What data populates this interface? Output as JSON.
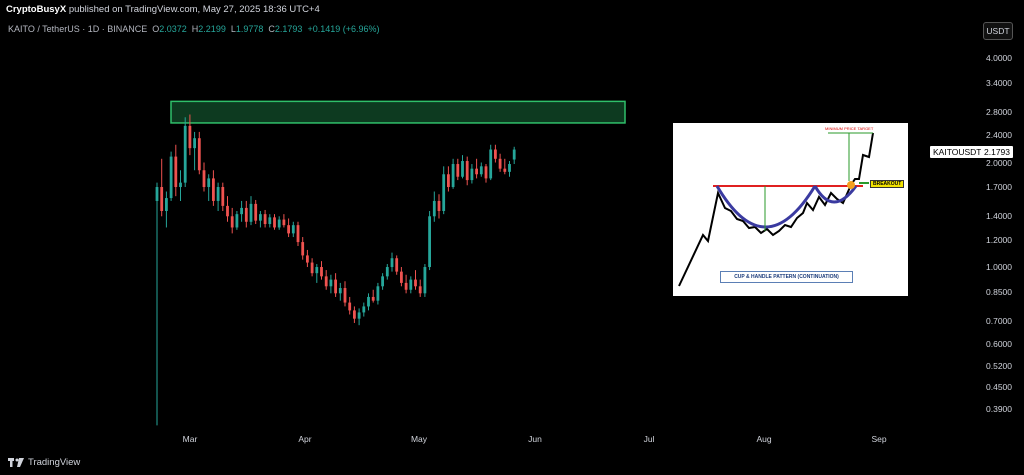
{
  "publisher": {
    "name": "CryptoBusyX",
    "text": "published on TradingView.com, May 27, 2025 18:36 UTC+4"
  },
  "header": {
    "symbol": "KAITO / TetherUS · 1D · BINANCE",
    "o_label": "O",
    "o_value": "2.0372",
    "h_label": "H",
    "h_value": "2.2199",
    "l_label": "L",
    "l_value": "1.9778",
    "c_label": "C",
    "c_value": "2.1793",
    "change": "+0.1419 (+6.96%)"
  },
  "currency_button": "USDT",
  "price_badge": {
    "symbol": "KAITOUSDT",
    "value": "2.1793"
  },
  "footer": {
    "brand": "TradingView"
  },
  "colors": {
    "up": "#26a69a",
    "down": "#ef5350",
    "zone": "#26a65b"
  },
  "chart_data": {
    "type": "candlestick",
    "scale": "log",
    "x_ticks": [
      "Mar",
      "Apr",
      "May",
      "Jun",
      "Jul",
      "Aug",
      "Sep"
    ],
    "y_ticks": [
      "4.0000",
      "3.4000",
      "2.8000",
      "2.4000",
      "2.0000",
      "1.7000",
      "1.4000",
      "1.2000",
      "1.0000",
      "0.8500",
      "0.7000",
      "0.6000",
      "0.5200",
      "0.4500",
      "0.3900"
    ],
    "resistance_zone": [
      2.6,
      3.0
    ],
    "last_price": 2.1793,
    "candles": [
      {
        "o": 1.55,
        "h": 1.75,
        "l": 0.35,
        "c": 1.7
      },
      {
        "o": 1.7,
        "h": 2.05,
        "l": 1.4,
        "c": 1.45
      },
      {
        "o": 1.45,
        "h": 1.65,
        "l": 1.3,
        "c": 1.58
      },
      {
        "o": 1.58,
        "h": 2.15,
        "l": 1.55,
        "c": 2.08
      },
      {
        "o": 2.08,
        "h": 2.25,
        "l": 1.6,
        "c": 1.7
      },
      {
        "o": 1.7,
        "h": 1.9,
        "l": 1.55,
        "c": 1.75
      },
      {
        "o": 1.75,
        "h": 2.7,
        "l": 1.7,
        "c": 2.55
      },
      {
        "o": 2.55,
        "h": 2.75,
        "l": 2.1,
        "c": 2.2
      },
      {
        "o": 2.2,
        "h": 2.45,
        "l": 1.9,
        "c": 2.35
      },
      {
        "o": 2.35,
        "h": 2.45,
        "l": 1.85,
        "c": 1.9
      },
      {
        "o": 1.9,
        "h": 2.0,
        "l": 1.65,
        "c": 1.7
      },
      {
        "o": 1.7,
        "h": 1.85,
        "l": 1.55,
        "c": 1.8
      },
      {
        "o": 1.8,
        "h": 1.9,
        "l": 1.5,
        "c": 1.55
      },
      {
        "o": 1.55,
        "h": 1.75,
        "l": 1.45,
        "c": 1.7
      },
      {
        "o": 1.7,
        "h": 1.75,
        "l": 1.45,
        "c": 1.5
      },
      {
        "o": 1.5,
        "h": 1.6,
        "l": 1.35,
        "c": 1.4
      },
      {
        "o": 1.4,
        "h": 1.48,
        "l": 1.25,
        "c": 1.3
      },
      {
        "o": 1.3,
        "h": 1.45,
        "l": 1.28,
        "c": 1.42
      },
      {
        "o": 1.42,
        "h": 1.55,
        "l": 1.35,
        "c": 1.48
      },
      {
        "o": 1.48,
        "h": 1.55,
        "l": 1.3,
        "c": 1.35
      },
      {
        "o": 1.35,
        "h": 1.6,
        "l": 1.32,
        "c": 1.52
      },
      {
        "o": 1.52,
        "h": 1.56,
        "l": 1.33,
        "c": 1.36
      },
      {
        "o": 1.36,
        "h": 1.45,
        "l": 1.3,
        "c": 1.42
      },
      {
        "o": 1.42,
        "h": 1.46,
        "l": 1.3,
        "c": 1.33
      },
      {
        "o": 1.33,
        "h": 1.42,
        "l": 1.3,
        "c": 1.39
      },
      {
        "o": 1.39,
        "h": 1.42,
        "l": 1.28,
        "c": 1.3
      },
      {
        "o": 1.3,
        "h": 1.4,
        "l": 1.28,
        "c": 1.37
      },
      {
        "o": 1.37,
        "h": 1.42,
        "l": 1.3,
        "c": 1.32
      },
      {
        "o": 1.32,
        "h": 1.38,
        "l": 1.22,
        "c": 1.25
      },
      {
        "o": 1.25,
        "h": 1.35,
        "l": 1.22,
        "c": 1.32
      },
      {
        "o": 1.32,
        "h": 1.35,
        "l": 1.15,
        "c": 1.18
      },
      {
        "o": 1.18,
        "h": 1.22,
        "l": 1.05,
        "c": 1.08
      },
      {
        "o": 1.08,
        "h": 1.12,
        "l": 1.0,
        "c": 1.03
      },
      {
        "o": 1.03,
        "h": 1.06,
        "l": 0.94,
        "c": 0.96
      },
      {
        "o": 0.96,
        "h": 1.02,
        "l": 0.9,
        "c": 1.0
      },
      {
        "o": 1.0,
        "h": 1.04,
        "l": 0.92,
        "c": 0.94
      },
      {
        "o": 0.94,
        "h": 0.98,
        "l": 0.86,
        "c": 0.88
      },
      {
        "o": 0.88,
        "h": 0.95,
        "l": 0.84,
        "c": 0.92
      },
      {
        "o": 0.92,
        "h": 0.96,
        "l": 0.82,
        "c": 0.84
      },
      {
        "o": 0.84,
        "h": 0.9,
        "l": 0.8,
        "c": 0.87
      },
      {
        "o": 0.87,
        "h": 0.91,
        "l": 0.77,
        "c": 0.79
      },
      {
        "o": 0.79,
        "h": 0.82,
        "l": 0.73,
        "c": 0.75
      },
      {
        "o": 0.75,
        "h": 0.77,
        "l": 0.69,
        "c": 0.71
      },
      {
        "o": 0.71,
        "h": 0.76,
        "l": 0.68,
        "c": 0.74
      },
      {
        "o": 0.74,
        "h": 0.79,
        "l": 0.72,
        "c": 0.77
      },
      {
        "o": 0.77,
        "h": 0.84,
        "l": 0.75,
        "c": 0.82
      },
      {
        "o": 0.82,
        "h": 0.86,
        "l": 0.79,
        "c": 0.8
      },
      {
        "o": 0.8,
        "h": 0.9,
        "l": 0.78,
        "c": 0.88
      },
      {
        "o": 0.88,
        "h": 0.96,
        "l": 0.86,
        "c": 0.94
      },
      {
        "o": 0.94,
        "h": 1.02,
        "l": 0.92,
        "c": 1.0
      },
      {
        "o": 1.0,
        "h": 1.1,
        "l": 0.97,
        "c": 1.06
      },
      {
        "o": 1.06,
        "h": 1.08,
        "l": 0.95,
        "c": 0.97
      },
      {
        "o": 0.97,
        "h": 1.0,
        "l": 0.88,
        "c": 0.9
      },
      {
        "o": 0.9,
        "h": 0.95,
        "l": 0.84,
        "c": 0.86
      },
      {
        "o": 0.86,
        "h": 0.94,
        "l": 0.84,
        "c": 0.92
      },
      {
        "o": 0.92,
        "h": 0.98,
        "l": 0.86,
        "c": 0.88
      },
      {
        "o": 0.88,
        "h": 0.92,
        "l": 0.82,
        "c": 0.84
      },
      {
        "o": 0.84,
        "h": 1.02,
        "l": 0.82,
        "c": 1.0
      },
      {
        "o": 1.0,
        "h": 1.45,
        "l": 0.98,
        "c": 1.4
      },
      {
        "o": 1.4,
        "h": 1.65,
        "l": 1.35,
        "c": 1.55
      },
      {
        "o": 1.55,
        "h": 1.62,
        "l": 1.38,
        "c": 1.45
      },
      {
        "o": 1.45,
        "h": 1.95,
        "l": 1.42,
        "c": 1.85
      },
      {
        "o": 1.85,
        "h": 1.95,
        "l": 1.65,
        "c": 1.7
      },
      {
        "o": 1.7,
        "h": 2.05,
        "l": 1.68,
        "c": 1.98
      },
      {
        "o": 1.98,
        "h": 2.05,
        "l": 1.78,
        "c": 1.82
      },
      {
        "o": 1.82,
        "h": 2.1,
        "l": 1.8,
        "c": 2.02
      },
      {
        "o": 2.02,
        "h": 2.08,
        "l": 1.72,
        "c": 1.78
      },
      {
        "o": 1.78,
        "h": 1.98,
        "l": 1.74,
        "c": 1.92
      },
      {
        "o": 1.92,
        "h": 2.05,
        "l": 1.8,
        "c": 1.85
      },
      {
        "o": 1.85,
        "h": 2.0,
        "l": 1.82,
        "c": 1.95
      },
      {
        "o": 1.95,
        "h": 1.98,
        "l": 1.75,
        "c": 1.8
      },
      {
        "o": 1.8,
        "h": 2.25,
        "l": 1.78,
        "c": 2.18
      },
      {
        "o": 2.18,
        "h": 2.25,
        "l": 2.0,
        "c": 2.05
      },
      {
        "o": 2.05,
        "h": 2.12,
        "l": 1.88,
        "c": 1.92
      },
      {
        "o": 1.92,
        "h": 2.05,
        "l": 1.85,
        "c": 1.88
      },
      {
        "o": 1.88,
        "h": 2.02,
        "l": 1.82,
        "c": 1.98
      },
      {
        "o": 2.04,
        "h": 2.22,
        "l": 1.98,
        "c": 2.1793
      }
    ]
  },
  "inset": {
    "title": "CUP & HANDLE PATTERN (CONTINUATION)",
    "target_label": "MINIMUM PRICE TARGET",
    "breakout_label": "BREAKOUT"
  }
}
